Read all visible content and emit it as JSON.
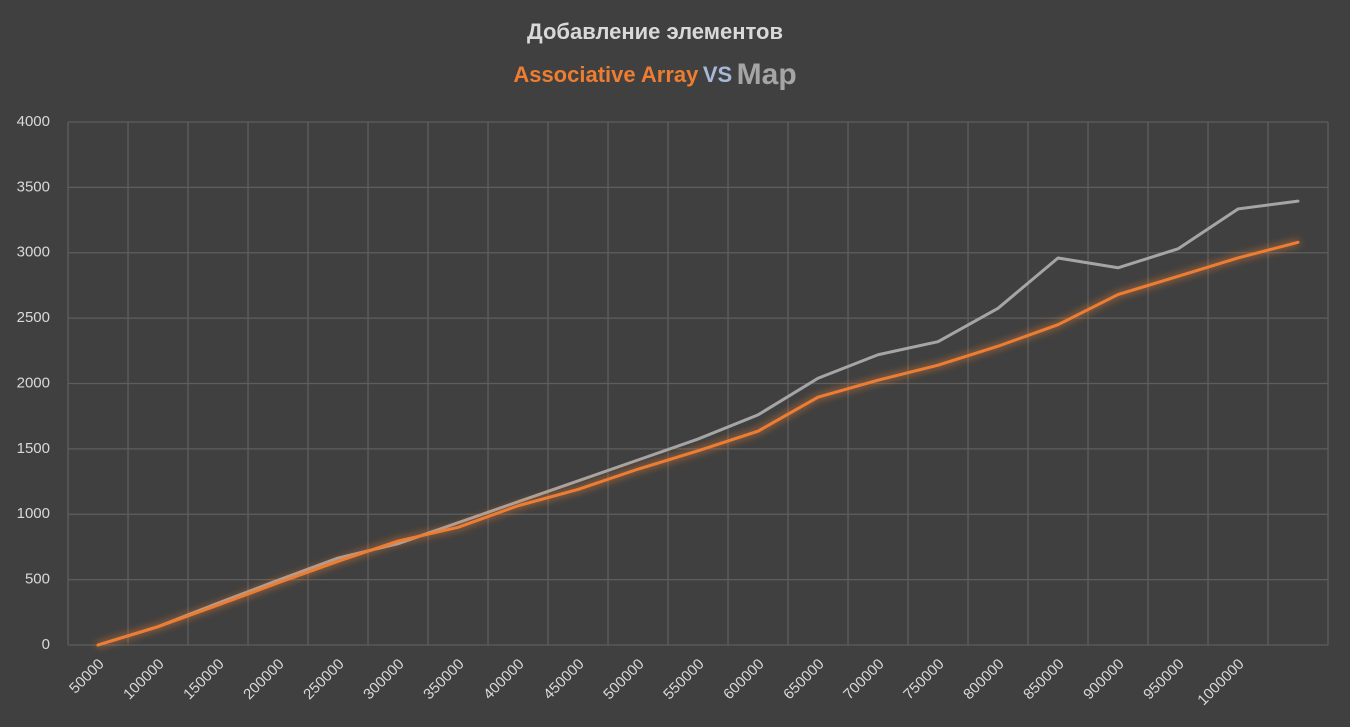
{
  "chart_data": {
    "type": "line",
    "title": "Добавление элементов",
    "legend_separator": "VS",
    "categories": [
      "50000",
      "100000",
      "150000",
      "200000",
      "250000",
      "300000",
      "350000",
      "400000",
      "450000",
      "500000",
      "550000",
      "600000",
      "650000",
      "700000",
      "750000",
      "800000",
      "850000",
      "900000",
      "950000",
      "1000000",
      null
    ],
    "series": [
      {
        "name": "Associative Array",
        "color": "#ed7d31",
        "values": [
          0,
          140,
          305,
          475,
          640,
          795,
          900,
          1065,
          1190,
          1345,
          1485,
          1635,
          1895,
          2025,
          2140,
          2285,
          2450,
          2680,
          2820,
          2960,
          3080
        ]
      },
      {
        "name": "Map",
        "color": "#a5a5a5",
        "values": [
          0,
          140,
          320,
          495,
          665,
          775,
          935,
          1095,
          1255,
          1415,
          1575,
          1760,
          2040,
          2220,
          2320,
          2575,
          2960,
          2885,
          3030,
          3335,
          3395
        ]
      }
    ],
    "ylim": [
      0,
      4000
    ],
    "yticks": [
      0,
      500,
      1000,
      1500,
      2000,
      2500,
      3000,
      3500,
      4000
    ],
    "grid": true
  }
}
